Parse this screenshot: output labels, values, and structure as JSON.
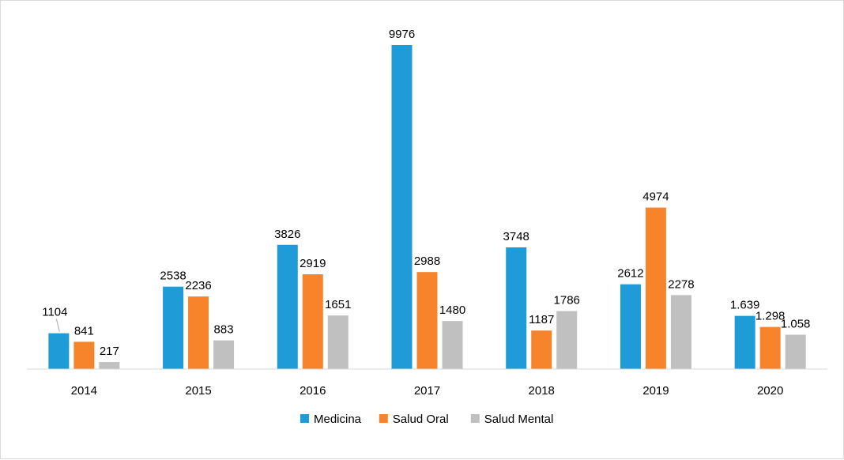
{
  "chart_data": {
    "type": "bar",
    "title": "",
    "xlabel": "",
    "ylabel": "",
    "ylim": [
      0,
      10000
    ],
    "grid": false,
    "legend_position": "bottom",
    "categories": [
      "2014",
      "2015",
      "2016",
      "2017",
      "2018",
      "2019",
      "2020"
    ],
    "series": [
      {
        "name": "Medicina",
        "color": "#1f9bd7",
        "values": [
          1104,
          2538,
          3826,
          9976,
          3748,
          2612,
          1639
        ],
        "labels": [
          "1104",
          "2538",
          "3826",
          "9976",
          "3748",
          "2612",
          "1.639"
        ]
      },
      {
        "name": "Salud Oral",
        "color": "#f7842a",
        "values": [
          841,
          2236,
          2919,
          2988,
          1187,
          4974,
          1298
        ],
        "labels": [
          "841",
          "2236",
          "2919",
          "2988",
          "1187",
          "4974",
          "1.298"
        ]
      },
      {
        "name": "Salud Mental",
        "color": "#c0c0c0",
        "values": [
          217,
          883,
          1651,
          1480,
          1786,
          2278,
          1058
        ],
        "labels": [
          "217",
          "883",
          "1651",
          "1480",
          "1786",
          "2278",
          "1.058"
        ]
      }
    ]
  }
}
